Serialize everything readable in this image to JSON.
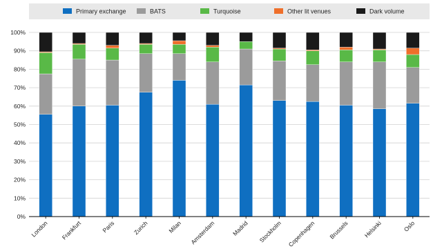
{
  "chart_data": {
    "type": "bar",
    "stacked": true,
    "title": "",
    "xlabel": "",
    "ylabel": "",
    "ylim": [
      0,
      100
    ],
    "y_tick_format": "percent",
    "y_ticks": [
      "0%",
      "10%",
      "20%",
      "30%",
      "40%",
      "50%",
      "60%",
      "70%",
      "80%",
      "90%",
      "100%"
    ],
    "grid": "horizontal",
    "legend_position": "top",
    "categories": [
      "London",
      "Frankfurt",
      "Paris",
      "Zurich",
      "Milan",
      "Amsterdam",
      "Madrid",
      "Stockholm",
      "Copenhagen",
      "Brussels",
      "Helsinki",
      "Oslo"
    ],
    "series": [
      {
        "name": "Primary exchange",
        "color": "#0f6fc1",
        "values": [
          55.5,
          60.0,
          60.5,
          67.5,
          74.0,
          61.0,
          71.5,
          63.0,
          62.5,
          60.5,
          58.5,
          61.5
        ]
      },
      {
        "name": "BATS",
        "color": "#9b9b9b",
        "values": [
          22.0,
          25.5,
          24.5,
          21.0,
          14.5,
          23.0,
          19.5,
          21.5,
          20.0,
          23.5,
          25.5,
          19.5
        ]
      },
      {
        "name": "Turquoise",
        "color": "#59b947",
        "values": [
          11.5,
          8.0,
          6.5,
          5.0,
          5.0,
          8.0,
          4.0,
          6.5,
          7.5,
          6.5,
          6.5,
          7.0
        ]
      },
      {
        "name": "Other lit venues",
        "color": "#ef6f2b",
        "values": [
          0.5,
          0.5,
          1.5,
          0.5,
          2.0,
          1.0,
          0.0,
          0.5,
          0.5,
          1.5,
          0.5,
          3.5
        ]
      },
      {
        "name": "Dark volume",
        "color": "#1a1a1a",
        "values": [
          10.5,
          6.0,
          7.0,
          6.0,
          4.5,
          7.0,
          5.0,
          8.5,
          9.5,
          8.0,
          9.0,
          8.5
        ]
      }
    ]
  }
}
